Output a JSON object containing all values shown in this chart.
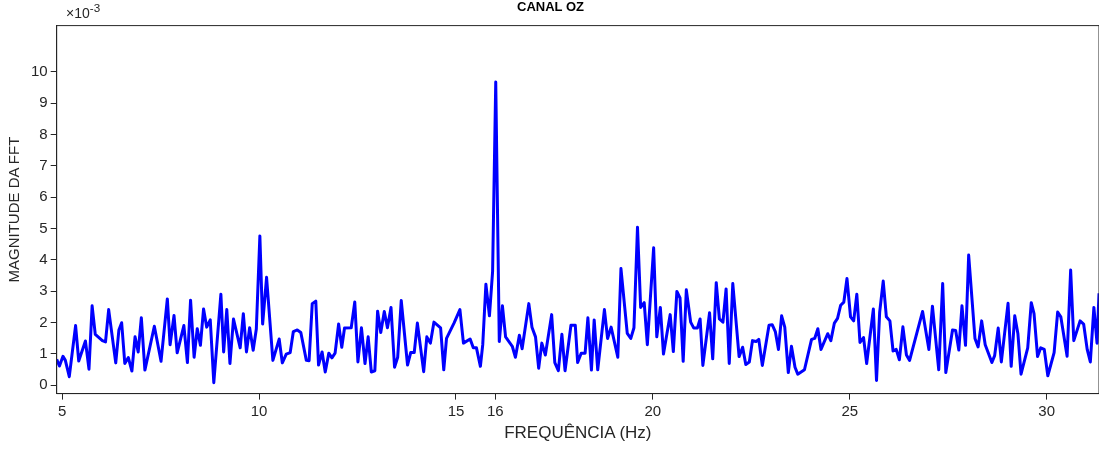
{
  "chart_data": {
    "type": "line",
    "title": "CANAL OZ",
    "xlabel": "FREQUÊNCIA (Hz)",
    "ylabel": "MAGNITUDE DA FFT",
    "annotations": [
      "×10$^{-3}$"
    ],
    "color": "#0000ff",
    "xlim": [
      4.86,
      31.33
    ],
    "ylim": [
      -0.27,
      11.47
    ],
    "xticks": [
      5,
      10,
      15,
      16,
      20,
      25,
      30
    ],
    "yticks": [
      0,
      1,
      2,
      3,
      4,
      5,
      6,
      7,
      8,
      9,
      10
    ],
    "x": [
      4.86,
      4.93,
      5.02,
      5.08,
      5.18,
      5.34,
      5.42,
      5.59,
      5.68,
      5.76,
      5.84,
      6.02,
      6.1,
      6.18,
      6.36,
      6.44,
      6.51,
      6.59,
      6.68,
      6.77,
      6.85,
      6.93,
      7.01,
      7.1,
      7.34,
      7.51,
      7.67,
      7.74,
      7.84,
      7.92,
      8.09,
      8.18,
      8.26,
      8.35,
      8.43,
      8.51,
      8.59,
      8.67,
      8.76,
      8.85,
      9.03,
      9.1,
      9.18,
      9.26,
      9.35,
      9.52,
      9.6,
      9.68,
      9.76,
      9.85,
      9.93,
      10.02,
      10.09,
      10.19,
      10.35,
      10.51,
      10.59,
      10.69,
      10.79,
      10.87,
      10.97,
      11.06,
      11.2,
      11.27,
      11.35,
      11.44,
      11.51,
      11.6,
      11.68,
      11.77,
      11.85,
      11.93,
      12.02,
      12.1,
      12.17,
      12.34,
      12.43,
      12.51,
      12.6,
      12.69,
      12.77,
      12.85,
      12.94,
      13.01,
      13.09,
      13.18,
      13.26,
      13.35,
      13.44,
      13.52,
      13.61,
      13.77,
      13.85,
      13.94,
      14.02,
      14.18,
      14.26,
      14.35,
      14.44,
      14.61,
      14.69,
      14.76,
      14.95,
      15.1,
      15.19,
      15.36,
      15.44,
      15.52,
      15.62,
      15.68,
      15.76,
      15.85,
      15.93,
      16.01,
      16.1,
      16.18,
      16.26,
      16.43,
      16.51,
      16.61,
      16.68,
      16.85,
      16.93,
      17.02,
      17.1,
      17.18,
      17.27,
      17.43,
      17.51,
      17.6,
      17.69,
      17.77,
      17.92,
      18.03,
      18.09,
      18.18,
      18.28,
      18.35,
      18.44,
      18.51,
      18.6,
      18.77,
      18.85,
      18.94,
      19.11,
      19.19,
      19.35,
      19.44,
      19.52,
      19.61,
      19.69,
      19.78,
      19.86,
      20.02,
      20.1,
      20.19,
      20.27,
      20.44,
      20.52,
      20.61,
      20.69,
      20.77,
      20.85,
      20.96,
      21.04,
      21.13,
      21.2,
      21.27,
      21.44,
      21.52,
      21.61,
      21.69,
      21.78,
      21.86,
      21.94,
      22.03,
      22.19,
      22.28,
      22.36,
      22.45,
      22.53,
      22.62,
      22.69,
      22.78,
      22.95,
      23.03,
      23.11,
      23.19,
      23.27,
      23.35,
      23.44,
      23.52,
      23.61,
      23.68,
      23.85,
      24.03,
      24.11,
      24.19,
      24.27,
      24.44,
      24.52,
      24.61,
      24.69,
      24.77,
      24.85,
      24.93,
      25.02,
      25.1,
      25.18,
      25.26,
      25.35,
      25.43,
      25.6,
      25.68,
      25.76,
      25.85,
      25.93,
      26.02,
      26.1,
      26.18,
      26.26,
      26.35,
      26.44,
      26.52,
      26.85,
      27.01,
      27.1,
      27.26,
      27.36,
      27.44,
      27.61,
      27.69,
      27.77,
      27.85,
      27.94,
      28.02,
      28.18,
      28.26,
      28.35,
      28.44,
      28.61,
      28.68,
      28.77,
      28.85,
      29.02,
      29.1,
      29.19,
      29.27,
      29.35,
      29.52,
      29.61,
      29.68,
      29.77,
      29.85,
      29.94,
      30.03,
      30.19,
      30.28,
      30.36,
      30.52,
      30.61,
      30.69,
      30.85,
      30.94,
      31.03,
      31.11,
      31.2,
      31.28,
      31.33
    ],
    "values": [
      0.82,
      0.61,
      0.92,
      0.79,
      0.27,
      1.9,
      0.77,
      1.41,
      0.51,
      2.53,
      1.62,
      1.42,
      1.38,
      2.41,
      0.71,
      1.76,
      1.99,
      0.69,
      0.88,
      0.45,
      1.54,
      1.06,
      2.15,
      0.48,
      1.88,
      0.76,
      2.75,
      1.29,
      2.22,
      1.03,
      1.9,
      0.72,
      2.71,
      0.89,
      1.8,
      1.27,
      2.43,
      1.85,
      2.08,
      0.08,
      2.9,
      1.06,
      2.41,
      0.69,
      2.11,
      1.19,
      2.28,
      1.06,
      1.83,
      1.11,
      1.79,
      4.76,
      1.95,
      3.44,
      0.79,
      1.47,
      0.71,
      0.99,
      1.04,
      1.71,
      1.76,
      1.68,
      0.79,
      0.78,
      2.6,
      2.68,
      0.64,
      1.06,
      0.42,
      1.02,
      0.87,
      1.02,
      1.95,
      1.21,
      1.82,
      1.83,
      2.65,
      0.74,
      1.83,
      0.69,
      1.54,
      0.42,
      0.46,
      2.36,
      1.68,
      2.35,
      1.83,
      2.48,
      0.57,
      0.89,
      2.7,
      0.64,
      1.04,
      1.04,
      1.98,
      0.43,
      1.54,
      1.34,
      2.01,
      1.83,
      0.49,
      1.49,
      1.98,
      2.41,
      1.34,
      1.47,
      1.19,
      1.19,
      0.6,
      1.29,
      3.22,
      2.21,
      3.62,
      9.67,
      1.39,
      2.53,
      1.54,
      1.24,
      0.89,
      1.59,
      1.16,
      2.6,
      1.85,
      1.54,
      0.54,
      1.34,
      0.96,
      2.25,
      0.72,
      0.46,
      1.62,
      0.46,
      1.91,
      1.91,
      0.72,
      1.02,
      1.02,
      2.15,
      0.48,
      2.08,
      0.49,
      2.41,
      1.49,
      1.85,
      0.89,
      3.72,
      1.65,
      1.49,
      1.83,
      5.04,
      2.48,
      2.63,
      1.29,
      4.38,
      1.54,
      2.48,
      0.99,
      2.25,
      1.07,
      2.99,
      2.78,
      0.76,
      3.04,
      2.01,
      1.82,
      1.82,
      2.11,
      0.63,
      2.31,
      0.84,
      3.27,
      2.11,
      2.01,
      3.07,
      0.69,
      3.24,
      0.91,
      1.21,
      0.66,
      0.74,
      1.42,
      1.39,
      1.46,
      0.63,
      1.91,
      1.93,
      1.71,
      1.14,
      2.21,
      1.85,
      0.4,
      1.24,
      0.57,
      0.35,
      0.49,
      1.46,
      1.49,
      1.8,
      1.14,
      1.64,
      1.42,
      1.98,
      2.13,
      2.55,
      2.65,
      3.4,
      2.18,
      2.05,
      2.9,
      1.36,
      1.52,
      0.69,
      2.43,
      0.15,
      2.33,
      3.32,
      2.18,
      2.05,
      1.09,
      1.14,
      0.81,
      1.86,
      0.96,
      0.79,
      2.35,
      1.14,
      2.52,
      0.49,
      3.24,
      0.4,
      1.76,
      1.74,
      1.12,
      2.53,
      1.27,
      4.15,
      1.49,
      1.22,
      2.05,
      1.29,
      0.72,
      0.94,
      1.82,
      0.74,
      2.61,
      0.6,
      2.21,
      1.65,
      0.35,
      1.19,
      2.63,
      2.28,
      0.91,
      1.19,
      1.14,
      0.3,
      1.04,
      2.33,
      2.18,
      0.92,
      3.67,
      1.42,
      2.05,
      1.95,
      1.14,
      0.74,
      2.48,
      1.34,
      2.93
    ]
  }
}
